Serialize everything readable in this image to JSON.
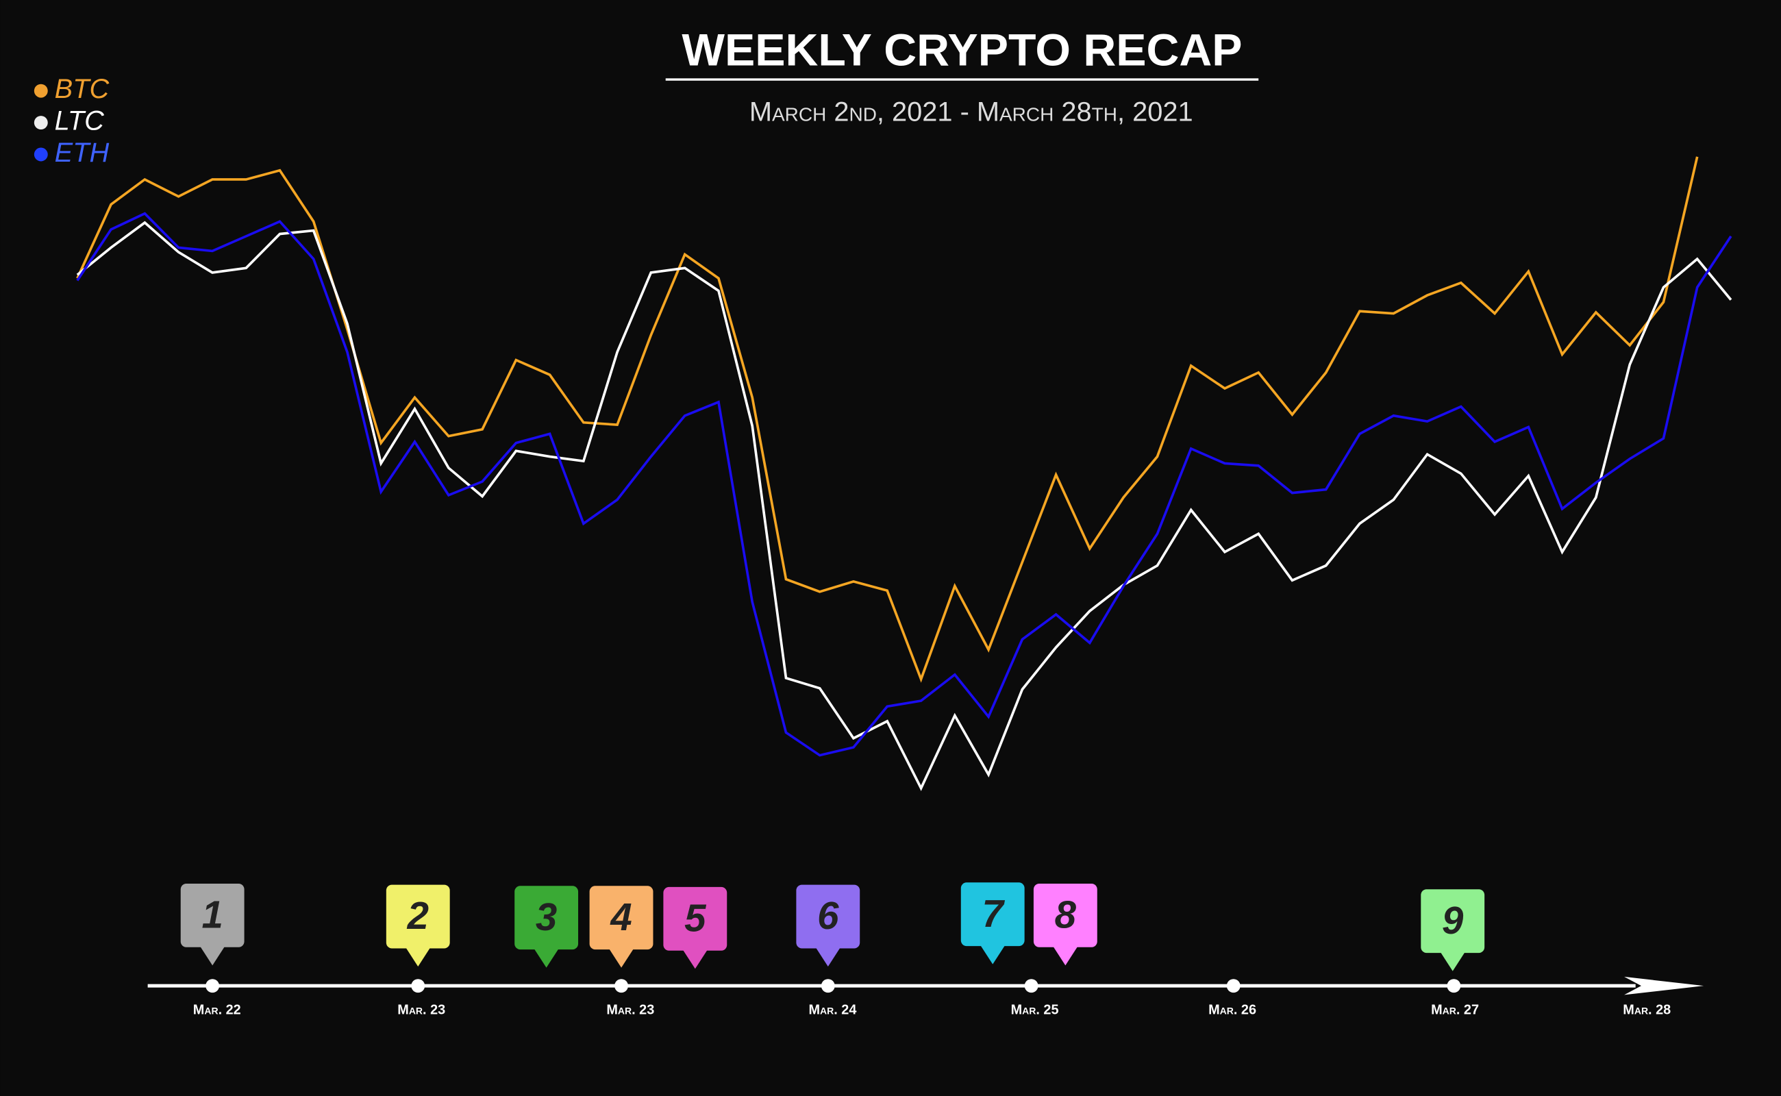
{
  "chart_data": {
    "type": "line",
    "title": "WEEKLY CRYPTO RECAP",
    "subtitle": "March 2nd, 2021 - March 28th, 2021",
    "series": [
      {
        "name": "BTC",
        "color": "#f5a623",
        "values": [
          475,
          540,
          562,
          547,
          562,
          562,
          570,
          525,
          430,
          330,
          370,
          336,
          342,
          403,
          390,
          348,
          346,
          425,
          496,
          475,
          370,
          210,
          199,
          208,
          200,
          122,
          204,
          148,
          225,
          302,
          237,
          282,
          318,
          398,
          378,
          392,
          355,
          392,
          446,
          444,
          460,
          471,
          444,
          481,
          408,
          445,
          416,
          454,
          582,
          null
        ]
      },
      {
        "name": "LTC",
        "color": "#ffffff",
        "values": [
          478,
          502,
          524,
          498,
          480,
          484,
          514,
          517,
          435,
          312,
          360,
          308,
          283,
          323,
          318,
          314,
          410,
          480,
          484,
          464,
          345,
          123,
          114,
          70,
          85,
          26,
          90,
          38,
          113,
          150,
          182,
          205,
          222,
          271,
          234,
          250,
          209,
          222,
          259,
          280,
          320,
          303,
          267,
          301,
          234,
          282,
          399,
          467,
          492,
          456
        ]
      },
      {
        "name": "ETH",
        "color": "#1a0cf0",
        "values": [
          473,
          518,
          532,
          502,
          499,
          512,
          525,
          492,
          410,
          287,
          331,
          284,
          296,
          330,
          338,
          259,
          280,
          318,
          354,
          366,
          190,
          75,
          55,
          62,
          98,
          103,
          126,
          89,
          157,
          179,
          154,
          204,
          250,
          325,
          312,
          310,
          286,
          289,
          338,
          354,
          349,
          362,
          331,
          344,
          272,
          295,
          316,
          334,
          467,
          512
        ]
      }
    ],
    "legend_colors": [
      "#f0a030",
      "#ffffff",
      "#3f63ff"
    ],
    "timeline": {
      "labels": [
        "Mar. 22",
        "Mar. 23",
        "Mar. 23",
        "Mar. 24",
        "Mar. 25",
        "Mar. 26",
        "Mar. 27",
        "Mar. 28"
      ],
      "pins": [
        {
          "label": "1",
          "color": "#a6a6a6"
        },
        {
          "label": "2",
          "color": "#f0f06a"
        },
        {
          "label": "3",
          "color": "#3aaa35"
        },
        {
          "label": "4",
          "color": "#f9b26b"
        },
        {
          "label": "5",
          "color": "#e050c0"
        },
        {
          "label": "6",
          "color": "#8f6ef0"
        },
        {
          "label": "7",
          "color": "#20c4e0"
        },
        {
          "label": "8",
          "color": "#ff80ff"
        },
        {
          "label": "9",
          "color": "#90f090"
        }
      ]
    }
  }
}
